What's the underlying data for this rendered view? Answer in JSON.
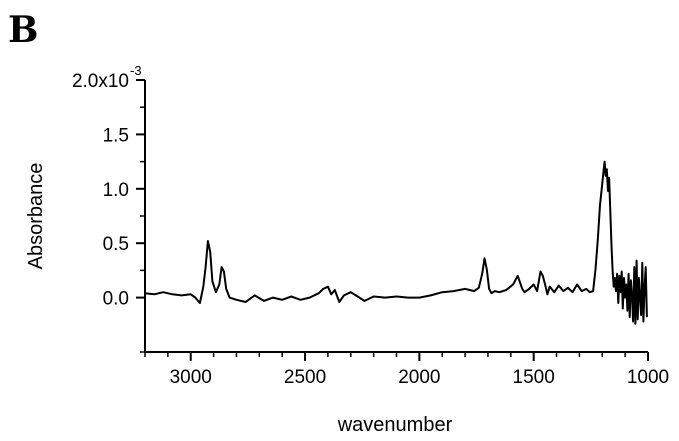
{
  "panel_label": "B",
  "chart_data": {
    "type": "line",
    "title": "",
    "xlabel": "wavenumber",
    "ylabel": "Absorbance",
    "x_reversed": true,
    "xlim": [
      3200,
      1000
    ],
    "ylim": [
      -0.0005,
      0.002
    ],
    "grid": false,
    "x_ticks": [
      3000,
      2500,
      2000,
      1500,
      1000
    ],
    "x_tick_labels": [
      "3000",
      "2500",
      "2000",
      "1500",
      "1000"
    ],
    "y_ticks": [
      0.0,
      0.0005,
      0.001,
      0.0015,
      0.002
    ],
    "y_tick_labels": [
      "0.0",
      "0.5",
      "1.0",
      "1.5",
      "2.0x10"
    ],
    "y_top_exponent": "-3",
    "series": [
      {
        "x": [
          3200,
          3160,
          3120,
          3080,
          3040,
          3000,
          2980,
          2960,
          2945,
          2935,
          2925,
          2915,
          2905,
          2890,
          2875,
          2865,
          2855,
          2845,
          2830,
          2800,
          2760,
          2720,
          2680,
          2640,
          2600,
          2560,
          2520,
          2480,
          2440,
          2420,
          2400,
          2385,
          2370,
          2350,
          2330,
          2300,
          2270,
          2240,
          2200,
          2150,
          2100,
          2050,
          2000,
          1950,
          1900,
          1850,
          1800,
          1760,
          1740,
          1725,
          1715,
          1705,
          1695,
          1685,
          1670,
          1650,
          1620,
          1590,
          1570,
          1560,
          1550,
          1540,
          1520,
          1500,
          1485,
          1470,
          1460,
          1450,
          1440,
          1430,
          1410,
          1390,
          1370,
          1350,
          1330,
          1310,
          1290,
          1270,
          1255,
          1240,
          1230,
          1220,
          1210,
          1200,
          1195,
          1190,
          1185,
          1180,
          1175,
          1170,
          1165,
          1160,
          1155,
          1150,
          1145,
          1140,
          1135,
          1130,
          1125,
          1120,
          1115,
          1110,
          1105,
          1100,
          1095,
          1090,
          1085,
          1080,
          1075,
          1070,
          1065,
          1060,
          1055,
          1050,
          1045,
          1040,
          1035,
          1030,
          1025,
          1020,
          1015,
          1010,
          1005
        ],
        "y": [
          4e-05,
          3e-05,
          5e-05,
          3e-05,
          2e-05,
          3e-05,
          0.0,
          -5e-05,
          0.0001,
          0.00028,
          0.00052,
          0.00042,
          0.00015,
          5e-05,
          0.00012,
          0.00028,
          0.00024,
          8e-05,
          0.0,
          -2e-05,
          -4e-05,
          2e-05,
          -3e-05,
          0.0,
          -2e-05,
          1e-05,
          -2e-05,
          0.0,
          4e-05,
          8e-05,
          0.0001,
          3e-05,
          7e-05,
          -4e-05,
          2e-05,
          5e-05,
          1e-05,
          -3e-05,
          1e-05,
          0.0,
          1e-05,
          0.0,
          0.0,
          2e-05,
          5e-05,
          6e-05,
          8e-05,
          6e-05,
          9e-05,
          0.00022,
          0.00036,
          0.00026,
          8e-05,
          4e-05,
          6e-05,
          5e-05,
          7e-05,
          0.00012,
          0.0002,
          0.00014,
          8e-05,
          5e-05,
          8e-05,
          0.00012,
          6e-05,
          0.00024,
          0.0002,
          0.00012,
          3e-05,
          0.0001,
          5e-05,
          0.00011,
          6e-05,
          9e-05,
          5e-05,
          0.00012,
          6e-05,
          8e-05,
          5e-05,
          6e-05,
          0.00025,
          0.00052,
          0.00085,
          0.00105,
          0.00115,
          0.00125,
          0.00112,
          0.00118,
          0.00098,
          0.0011,
          0.0008,
          0.0005,
          0.00025,
          0.0001,
          0.00018,
          6e-05,
          0.00022,
          -5e-05,
          0.0002,
          5e-05,
          0.00024,
          -0.0001,
          0.00018,
          0.0,
          0.00012,
          -0.00012,
          0.00022,
          -0.00018,
          0.00016,
          2e-05,
          -0.00022,
          0.00028,
          -0.00024,
          0.00034,
          -0.0002,
          0.00018,
          0.0,
          -0.00016,
          0.00032,
          -0.00022,
          0.0001,
          0.00028,
          -0.00018
        ]
      }
    ]
  }
}
